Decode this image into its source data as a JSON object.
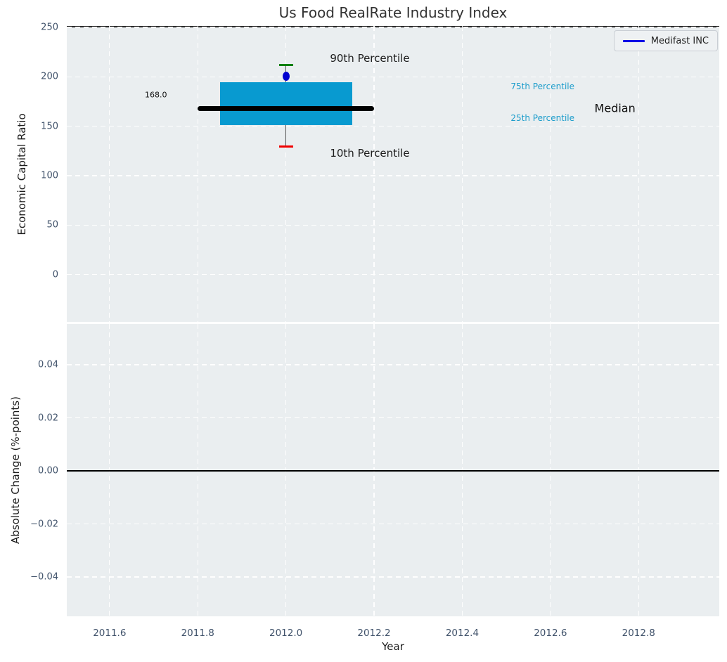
{
  "title": "Us Food RealRate Industry Index",
  "legend": {
    "label": "Medifast INC",
    "line_color": "#0101e6",
    "position": "upper right"
  },
  "axes": {
    "top": {
      "ylabel": "Economic Capital Ratio"
    },
    "bottom": {
      "ylabel": "Absolute Change (%-points)",
      "xlabel": "Year"
    }
  },
  "colors": {
    "figure_bg": "#ffffff",
    "axes_bg": "#eaeef0",
    "grid": "#ffffff",
    "box_fill": "#089ad0",
    "median_line": "#000000",
    "whisker": "#555555",
    "cap_top": "#008000",
    "cap_bottom": "#f00000",
    "company_point": "#0000d0",
    "legend_line": "#0101e6",
    "zero_line": "#000000",
    "tick_label": "#41536b",
    "annotation_cyan": "#1d9dcb"
  },
  "chart_data": [
    {
      "type": "boxplot",
      "title": "Us Food RealRate Industry Index",
      "ylabel": "Economic Capital Ratio",
      "xlim": [
        2011.503,
        2012.983
      ],
      "ylim": [
        -48,
        251.4
      ],
      "xticks": [
        2011.6,
        2011.8,
        2012.0,
        2012.2,
        2012.4,
        2012.6,
        2012.8
      ],
      "xtick_labels": [
        "2011.6",
        "2011.8",
        "2012.0",
        "2012.2",
        "2012.4",
        "2012.6",
        "2012.8"
      ],
      "yticks": [
        250,
        200,
        150,
        100,
        50,
        0
      ],
      "ytick_labels": [
        "250",
        "200",
        "150",
        "100",
        "50",
        "0"
      ],
      "grid": {
        "visible": true,
        "style": "dashed",
        "color": "#ffffff"
      },
      "legend_entries": [
        {
          "label": "Medifast INC",
          "color": "#0101e6"
        }
      ],
      "box": {
        "x": 2012.0,
        "p10": 129.5,
        "p25": 151.0,
        "median": 168.0,
        "p75": 194.5,
        "p90": 212.0,
        "company_value": 200.7,
        "median_label": "168.0",
        "box_halfwidth": 0.15,
        "median_halfwidth": 0.2,
        "cap_halfwidth": 0.016
      },
      "annotations": [
        {
          "text": "90th Percentile",
          "x": 2012.1,
          "y": 219,
          "style": "large"
        },
        {
          "text": "10th Percentile",
          "x": 2012.1,
          "y": 123,
          "style": "large"
        },
        {
          "text": "168.0",
          "x": 2011.68,
          "y": 182,
          "style": "small"
        },
        {
          "text": "75th Percentile",
          "x": 2012.51,
          "y": 190,
          "style": "cyan"
        },
        {
          "text": "25th Percentile",
          "x": 2012.51,
          "y": 158,
          "style": "cyan"
        },
        {
          "text": "Median",
          "x": 2012.7,
          "y": 168,
          "style": "median"
        }
      ]
    },
    {
      "type": "line",
      "ylabel": "Absolute Change (%-points)",
      "xlabel": "Year",
      "xlim": [
        2011.503,
        2012.983
      ],
      "ylim": [
        -0.0548,
        0.0554
      ],
      "xticks": [
        2011.6,
        2011.8,
        2012.0,
        2012.2,
        2012.4,
        2012.6,
        2012.8
      ],
      "xtick_labels": [
        "2011.6",
        "2011.8",
        "2012.0",
        "2012.2",
        "2012.4",
        "2012.6",
        "2012.8"
      ],
      "yticks": [
        0.04,
        0.02,
        0.0,
        -0.02,
        -0.04
      ],
      "ytick_labels": [
        "0.04",
        "0.02",
        "0.00",
        "−0.02",
        "−0.04"
      ],
      "grid": {
        "visible": true,
        "style": "dashed",
        "color": "#ffffff"
      },
      "zero_line_y": 0.0,
      "series": []
    }
  ]
}
